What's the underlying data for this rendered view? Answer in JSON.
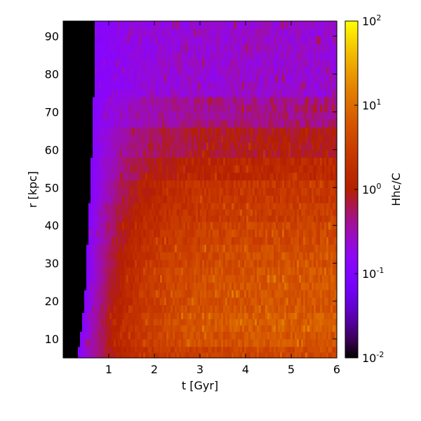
{
  "chart_data": {
    "type": "heatmap",
    "title": "",
    "xlabel": "t [Gyr]",
    "ylabel": "r [kpc]",
    "xlim": [
      0,
      6
    ],
    "ylim": [
      5,
      94
    ],
    "x_ticks": [
      1,
      2,
      3,
      4,
      5,
      6
    ],
    "y_ticks": [
      10,
      20,
      30,
      40,
      50,
      60,
      70,
      80,
      90
    ],
    "colorbar": {
      "label": "Hhc/C",
      "scale": "log",
      "colormap": "gnuplot",
      "range": [
        0.01,
        100
      ],
      "ticks": [
        {
          "base": "10",
          "exp": "-2",
          "value": 0.01
        },
        {
          "base": "10",
          "exp": "-1",
          "value": 0.1
        },
        {
          "base": "10",
          "exp": "0",
          "value": 1
        },
        {
          "base": "10",
          "exp": "1",
          "value": 10
        },
        {
          "base": "10",
          "exp": "2",
          "value": 100
        }
      ]
    },
    "bands": [
      {
        "r": [
          5,
          8
        ],
        "onset_t": 0.3,
        "late_value": 4
      },
      {
        "r": [
          8,
          12
        ],
        "onset_t": 0.35,
        "late_value": 6
      },
      {
        "r": [
          12,
          17
        ],
        "onset_t": 0.4,
        "late_value": 7
      },
      {
        "r": [
          17,
          23
        ],
        "onset_t": 0.45,
        "late_value": 6
      },
      {
        "r": [
          23,
          29
        ],
        "onset_t": 0.5,
        "late_value": 6
      },
      {
        "r": [
          29,
          35
        ],
        "onset_t": 0.5,
        "late_value": 5
      },
      {
        "r": [
          35,
          41
        ],
        "onset_t": 0.55,
        "late_value": 4
      },
      {
        "r": [
          41,
          46
        ],
        "onset_t": 0.55,
        "late_value": 3
      },
      {
        "r": [
          46,
          52
        ],
        "onset_t": 0.6,
        "late_value": 2.5
      },
      {
        "r": [
          52,
          58
        ],
        "onset_t": 0.6,
        "late_value": 1.5
      },
      {
        "r": [
          58,
          66
        ],
        "onset_t": 0.62,
        "late_value": 0.9
      },
      {
        "r": [
          66,
          74
        ],
        "onset_t": 0.62,
        "late_value": 0.45
      },
      {
        "r": [
          74,
          94
        ],
        "onset_t": 0.65,
        "late_value": 0.25
      }
    ]
  }
}
